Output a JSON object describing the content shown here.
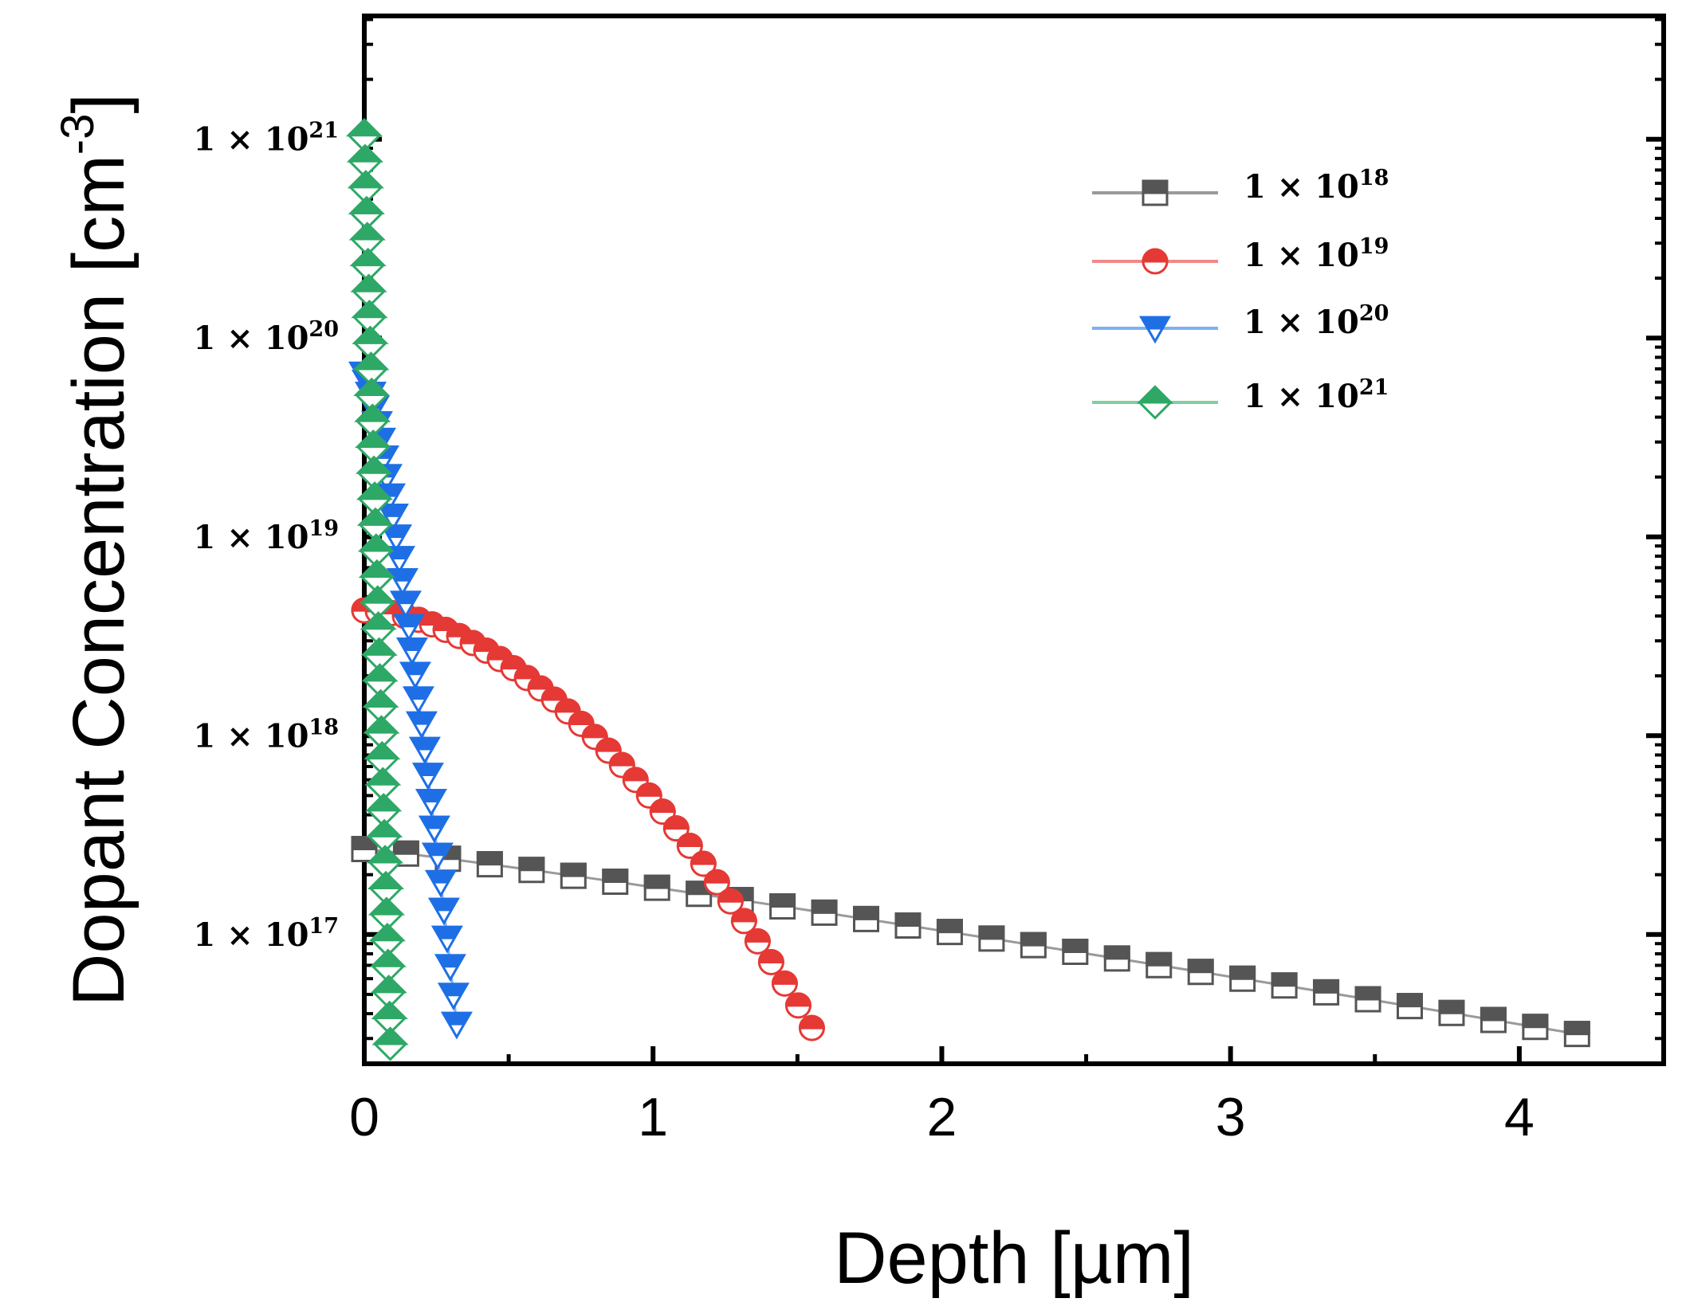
{
  "chart_data": {
    "type": "scatter",
    "title": "",
    "xlabel": "Depth [µm]",
    "ylabel_main": "Dopant Concentration [cm",
    "ylabel_exp": "-3",
    "ylabel_close": "]",
    "xlim": [
      0,
      4.5
    ],
    "ylim_log10": [
      16.35,
      21.62
    ],
    "xticks": [
      {
        "value": 0,
        "label": "0"
      },
      {
        "value": 1,
        "label": "1"
      },
      {
        "value": 2,
        "label": "2"
      },
      {
        "value": 3,
        "label": "3"
      },
      {
        "value": 4,
        "label": "4"
      }
    ],
    "yticks": [
      {
        "log10": 21,
        "mant": "1 × 10",
        "exp": "21"
      },
      {
        "log10": 20,
        "mant": "1 × 10",
        "exp": "20"
      },
      {
        "log10": 19,
        "mant": "1 × 10",
        "exp": "19"
      },
      {
        "log10": 18,
        "mant": "1 × 10",
        "exp": "18"
      },
      {
        "log10": 17,
        "mant": "1 × 10",
        "exp": "17"
      }
    ],
    "legend_position": "top-right",
    "series": [
      {
        "name": "1e18",
        "label_mant": "1 × 10",
        "label_exp": "18",
        "color": "#555555",
        "line_color": "#9a9a9a",
        "marker": "square",
        "surface_log10": 17.43,
        "depth_um": 4.2,
        "end_log10": 16.5,
        "shape_power": 1.1,
        "n_points": 30
      },
      {
        "name": "1e19",
        "label_mant": "1 × 10",
        "label_exp": "19",
        "color": "#e53935",
        "line_color": "#f08a88",
        "marker": "circle",
        "surface_log10": 18.63,
        "depth_um": 1.55,
        "end_log10": 16.53,
        "shape_power": 1.8,
        "n_points": 34
      },
      {
        "name": "1e20",
        "label_mant": "1 × 10",
        "label_exp": "20",
        "color": "#1e6fe6",
        "line_color": "#7fb0f3",
        "marker": "triangle-down",
        "surface_log10": 19.82,
        "depth_um": 0.32,
        "end_log10": 16.55,
        "shape_power": 1.3,
        "n_points": 30
      },
      {
        "name": "1e21",
        "label_mant": "1 × 10",
        "label_exp": "21",
        "color": "#2ea866",
        "line_color": "#7fcfa0",
        "marker": "diamond",
        "surface_log10": 21.02,
        "depth_um": 0.09,
        "end_log10": 16.45,
        "shape_power": 1.0,
        "n_points": 36
      }
    ]
  }
}
